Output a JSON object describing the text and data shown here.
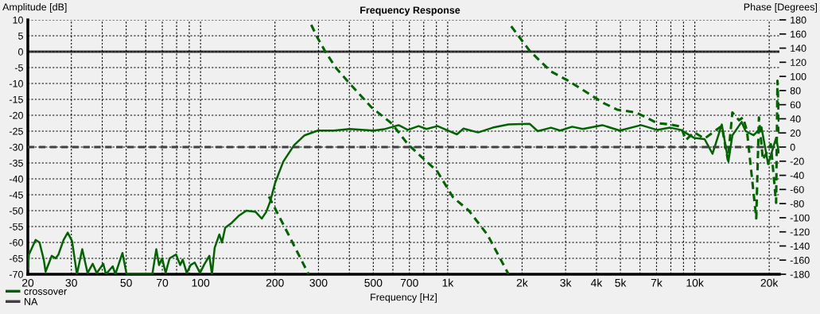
{
  "chart_data": {
    "type": "line",
    "title": "Frequency Response",
    "xlabel": "Frequency [Hz]",
    "ylabel": "Amplitude [dB]",
    "y2label": "Phase [Degrees]",
    "log": "x",
    "grid": true,
    "legend": "bottom left",
    "xlim": [
      20,
      22000
    ],
    "xticks": [
      20,
      30,
      {
        "value": 40,
        "label": null
      },
      50,
      {
        "value": 60,
        "label": null
      },
      70,
      {
        "value": 80,
        "label": null
      },
      {
        "value": 90,
        "label": null
      },
      100,
      200,
      300,
      {
        "value": 400,
        "label": null
      },
      500,
      {
        "value": 600,
        "label": null
      },
      700,
      {
        "value": 800,
        "label": null
      },
      {
        "value": 900,
        "label": null
      },
      {
        "value": 1000,
        "label": "1k"
      },
      {
        "value": 2000,
        "label": "2k"
      },
      {
        "value": 3000,
        "label": "3k"
      },
      {
        "value": 4000,
        "label": "4k"
      },
      {
        "value": 5000,
        "label": "5k"
      },
      {
        "value": 6000,
        "label": null
      },
      {
        "value": 7000,
        "label": "7k"
      },
      {
        "value": 8000,
        "label": null
      },
      {
        "value": 9000,
        "label": null
      },
      {
        "value": 10000,
        "label": "10k"
      },
      {
        "value": 20000,
        "label": "20k"
      }
    ],
    "ylim": [
      -70,
      10
    ],
    "yticks": [
      10,
      5,
      0,
      -5,
      -10,
      -15,
      -20,
      -25,
      -30,
      -35,
      -40,
      -45,
      -50,
      -55,
      -60,
      -65,
      -70
    ],
    "y2lim": [
      -180,
      180
    ],
    "y2ticks": [
      180,
      160,
      140,
      120,
      100,
      80,
      60,
      40,
      20,
      0,
      -20,
      -40,
      -60,
      -80,
      -100,
      -120,
      -140,
      -160,
      -180
    ],
    "ref_lines": [
      {
        "axis": "y",
        "value": 0,
        "label": "NA",
        "color": "#404040",
        "line_style": "solid"
      },
      {
        "axis": "y2",
        "value": 0,
        "label": null,
        "color": "#404040",
        "line_style": "dashed"
      }
    ],
    "series": [
      {
        "name": "crossover",
        "color": "#006400",
        "line_style": "solid",
        "x": [
          20,
          20.2,
          21.5,
          22.3,
          23.2,
          23.6,
          25.0,
          25.9,
          26.6,
          27.9,
          29.0,
          30.2,
          31.6,
          33.2,
          34.9,
          36.6,
          38.0,
          40.4,
          41.4,
          44.1,
          45.2,
          48.3,
          50.2,
          60.0,
          63.8,
          66.2,
          67.9,
          69.9,
          72.2,
          74.9,
          79.6,
          82.7,
          84.7,
          87.9,
          91.2,
          94.7,
          99.5,
          103.2,
          108.5,
          111.2,
          114,
          119.1,
          122.1,
          125.8,
          133.8,
          142.3,
          153.2,
          167.1,
          176.8,
          184.4,
          191.3,
          200.2,
          216,
          239,
          263.6,
          298.3,
          345.9,
          401,
          501,
          553,
          633,
          690,
          762,
          821,
          910,
          988,
          1090,
          1159,
          1328,
          1521,
          1763,
          2149,
          2314,
          2618,
          2853,
          3189,
          3520,
          4225,
          4971,
          6057,
          7025,
          7947,
          8770,
          9923,
          10952,
          11794,
          12859,
          13674,
          14190,
          15470,
          16052,
          17290,
          18614,
          19803,
          21330,
          21865
        ],
        "values": [
          -68.3,
          -63.8,
          -59.2,
          -60,
          -65.4,
          -69.2,
          -64.2,
          -65,
          -63.8,
          -59.2,
          -56.9,
          -59.6,
          -70,
          -62.1,
          -69.6,
          -66.7,
          -69.6,
          -66.7,
          -70,
          -67.5,
          -70,
          -63.3,
          -70,
          -69.8,
          -70,
          -62.1,
          -67.1,
          -65,
          -69.6,
          -65,
          -63.8,
          -67.1,
          -65.4,
          -69.6,
          -67.1,
          -66.3,
          -69.6,
          -67.1,
          -64.2,
          -70,
          -61.7,
          -57.5,
          -60,
          -55.4,
          -53.8,
          -51.7,
          -50,
          -50.4,
          -52.5,
          -50.4,
          -47.1,
          -41.3,
          -34.6,
          -29.4,
          -26.3,
          -24.8,
          -24.8,
          -24.3,
          -24.8,
          -24.4,
          -23.1,
          -24.6,
          -23.4,
          -24.3,
          -23.4,
          -24.6,
          -26,
          -24.2,
          -25.4,
          -23.9,
          -22.9,
          -22.7,
          -25,
          -23.9,
          -24.8,
          -23.6,
          -24.3,
          -23.1,
          -24.8,
          -23.1,
          -24.6,
          -23.9,
          -24.6,
          -27.1,
          -27.5,
          -32.1,
          -22.9,
          -34.6,
          -26.3,
          -22.1,
          -25,
          -26.3,
          -23.8,
          -35.4,
          -27.1,
          -31.7
        ]
      },
      {
        "color": "#006400",
        "line_style": "dashed",
        "axis": "y2",
        "x": [
          189,
          227,
          273.6
        ],
        "values": [
          -70,
          -124,
          -180
        ]
      },
      {
        "color": "#006400",
        "line_style": "dashed",
        "axis": "y2",
        "x": [
          280.4,
          298,
          321,
          355,
          401,
          489,
          595,
          690,
          801,
          906,
          1051,
          1218,
          1448,
          1763
        ],
        "values": [
          173,
          154,
          134,
          111,
          90,
          57,
          33,
          4,
          -17,
          -34,
          -71,
          -90,
          -124,
          -180
        ]
      },
      {
        "color": "#006400",
        "line_style": "dashed",
        "axis": "y2",
        "x": [
          1807,
          2149,
          2618,
          3035,
          3520,
          4289,
          4851,
          5766,
          6363,
          7025,
          7947,
          8770,
          9215,
          9923,
          10952,
          12088,
          12859,
          13608,
          14190,
          15093,
          15664,
          16255,
          17729,
          18171,
          18856,
          20300,
          21330,
          21600,
          21974
        ],
        "values": [
          171,
          136,
          107,
          95,
          81,
          62,
          53,
          49,
          42,
          34,
          32,
          29,
          10,
          21,
          12,
          23,
          30,
          -18,
          49,
          38,
          42,
          23,
          -101,
          42,
          -18,
          4,
          -79,
          94,
          19
        ]
      }
    ]
  }
}
